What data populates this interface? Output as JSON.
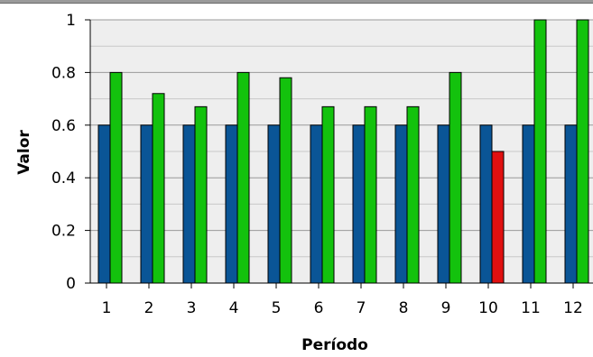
{
  "chart_data": {
    "type": "bar",
    "xlabel": "Período",
    "ylabel": "Valor",
    "ylim": [
      0,
      1
    ],
    "yticks": [
      0,
      0.2,
      0.4,
      0.6,
      0.8,
      1
    ],
    "ytick_labels": [
      "0",
      "0.2",
      "0.4",
      "0.6",
      "0.8",
      "1"
    ],
    "categories": [
      "1",
      "2",
      "3",
      "4",
      "5",
      "6",
      "7",
      "8",
      "9",
      "10",
      "11",
      "12"
    ],
    "series": [
      {
        "values": [
          0.6,
          0.6,
          0.6,
          0.6,
          0.6,
          0.6,
          0.6,
          0.6,
          0.6,
          0.6,
          0.6,
          0.6
        ],
        "color": "#0a5596"
      },
      {
        "values": [
          0.8,
          0.72,
          0.67,
          0.8,
          0.78,
          0.67,
          0.67,
          0.67,
          0.8,
          0.5,
          1.0,
          1.0
        ],
        "colors": [
          "#13c20d",
          "#13c20d",
          "#13c20d",
          "#13c20d",
          "#13c20d",
          "#13c20d",
          "#13c20d",
          "#13c20d",
          "#13c20d",
          "#e01010",
          "#13c20d",
          "#13c20d"
        ]
      }
    ],
    "grid": true,
    "plot_background": "#eeeeee",
    "gridline_color": "#999999"
  }
}
